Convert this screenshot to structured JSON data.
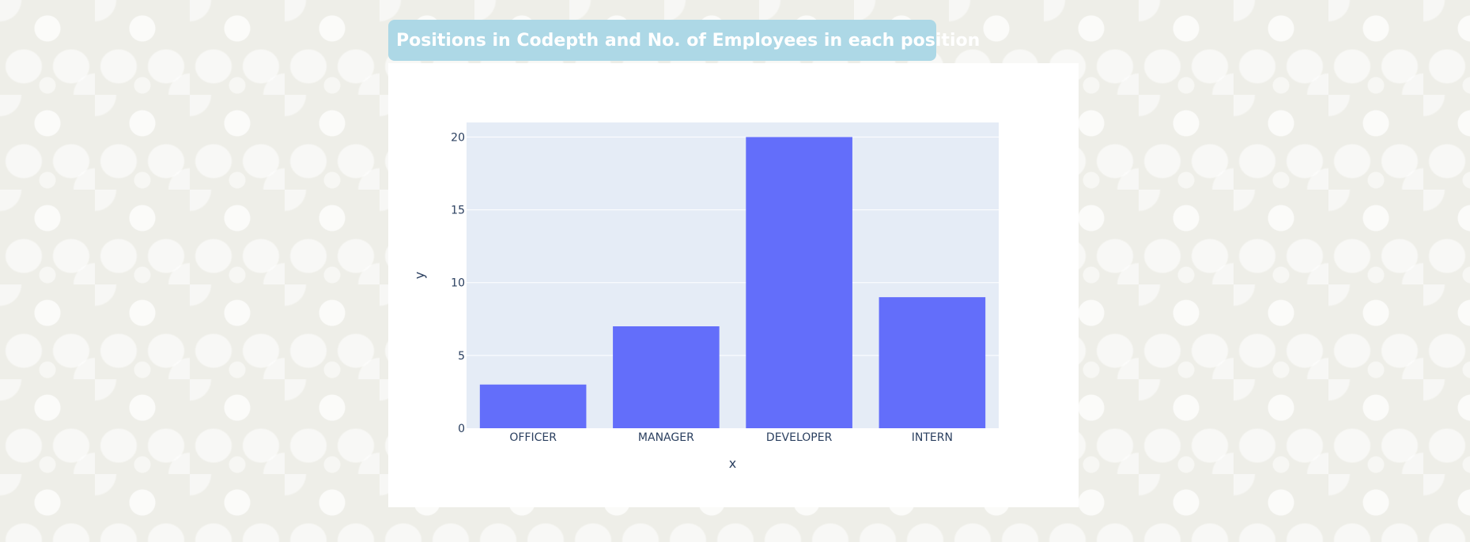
{
  "header": {
    "title": "Positions in Codepth and No. of Employees in each position"
  },
  "chart_data": {
    "type": "bar",
    "categories": [
      "OFFICER",
      "MANAGER",
      "DEVELOPER",
      "INTERN"
    ],
    "values": [
      3,
      7,
      20,
      9
    ],
    "xlabel": "x",
    "ylabel": "y",
    "ylim": [
      0,
      21
    ],
    "yticks": [
      0,
      5,
      10,
      15,
      20
    ],
    "grid": true,
    "bar_color": "#636efa",
    "plot_background": "#e5ecf6"
  }
}
